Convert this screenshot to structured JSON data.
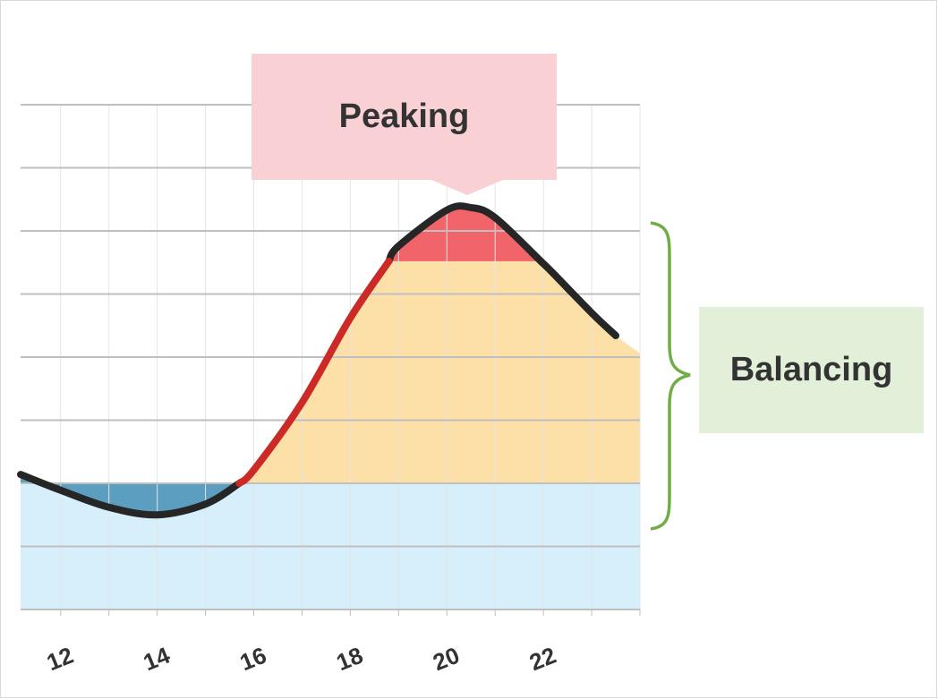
{
  "chart_data": {
    "type": "line",
    "x": [
      11.17,
      12,
      13,
      14,
      15,
      15.7,
      16,
      17,
      18,
      18.8,
      19,
      20,
      20.5,
      21,
      22,
      22.2,
      23,
      23.5,
      24
    ],
    "xlim": [
      11.17,
      24
    ],
    "xticks": [
      12,
      14,
      16,
      18,
      20,
      22
    ],
    "xminorticks": [
      12,
      13,
      14,
      15,
      16,
      17,
      18,
      19,
      20,
      21,
      22,
      23,
      24
    ],
    "ylim": [
      0,
      8
    ],
    "yticks": [
      0,
      1,
      2,
      3,
      4,
      5,
      6,
      7,
      8
    ],
    "grid": true,
    "areas": [
      {
        "color": "#d7effb",
        "base": 0,
        "values": [
          2,
          2,
          2,
          2,
          2,
          2,
          2,
          2,
          2,
          2,
          2,
          2,
          2,
          2,
          2,
          2,
          2,
          2,
          2
        ]
      },
      {
        "color": "#5b9ebf",
        "base": 2,
        "values": [
          2.14,
          1.89,
          1.62,
          1.5,
          1.67,
          2.0,
          null,
          null,
          null,
          null,
          null,
          null,
          null,
          null,
          null,
          null,
          null,
          null,
          null
        ]
      },
      {
        "color": "#fde0a8",
        "base": 2,
        "values": [
          null,
          null,
          null,
          null,
          null,
          2.0,
          2.21,
          3.28,
          4.62,
          5.52,
          5.52,
          5.52,
          5.52,
          5.52,
          5.52,
          5.33,
          4.7,
          4.34,
          4.06
        ]
      },
      {
        "color": "#f0646a",
        "base": 5.52,
        "values": [
          null,
          null,
          null,
          null,
          null,
          null,
          null,
          null,
          null,
          5.52,
          5.76,
          6.33,
          6.37,
          6.21,
          5.48,
          null,
          null,
          null,
          null
        ]
      }
    ],
    "series": [
      {
        "color": "#262626",
        "values": [
          2.14,
          1.89,
          1.62,
          1.5,
          1.67,
          2.0,
          null,
          null,
          null,
          5.52,
          5.76,
          6.33,
          6.37,
          6.21,
          5.48,
          5.33,
          4.7,
          4.34,
          null
        ]
      },
      {
        "color": "#cc2a27",
        "values": [
          null,
          null,
          null,
          null,
          null,
          2.0,
          2.21,
          3.28,
          4.62,
          5.52,
          null,
          null,
          null,
          null,
          null,
          null,
          null,
          null,
          null
        ]
      }
    ],
    "annotations": [
      {
        "text": "Peaking",
        "color": "#f9d1d4"
      },
      {
        "text": "Balancing",
        "color": "#e2efd9"
      }
    ]
  }
}
